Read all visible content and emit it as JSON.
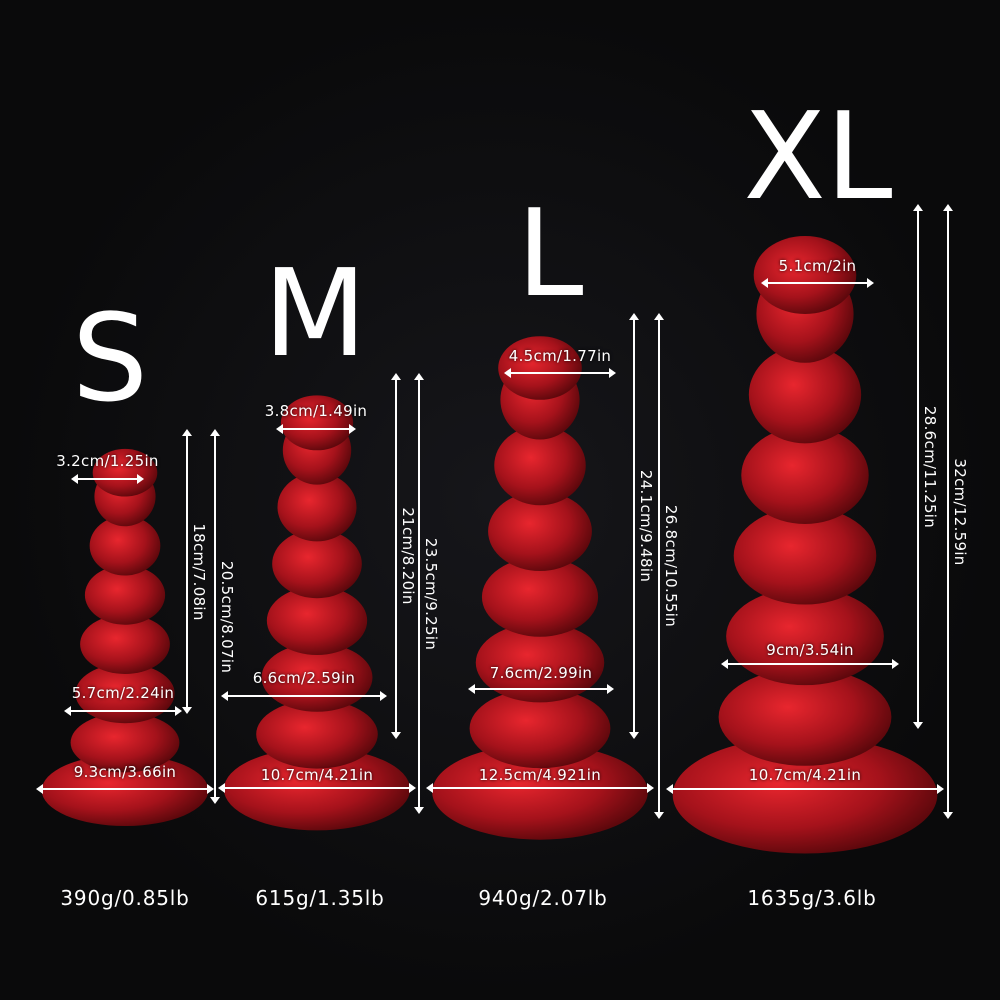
{
  "colors": {
    "background": "#0a0a0b",
    "product": "#b0121c",
    "highlight": "#e8262e",
    "text": "#ffffff"
  },
  "sizes": [
    {
      "label": "S",
      "top_diameter": "3.2cm/1.25in",
      "mid_diameter": "5.7cm/2.24in",
      "base_diameter": "9.3cm/3.66in",
      "insertable_length": "18cm/7.08in",
      "total_length": "20.5cm/8.07in",
      "weight": "390g/0.85lb"
    },
    {
      "label": "M",
      "top_diameter": "3.8cm/1.49in",
      "mid_diameter": "6.6cm/2.59in",
      "base_diameter": "10.7cm/4.21in",
      "insertable_length": "21cm/8.20in",
      "total_length": "23.5cm/9.25in",
      "weight": "615g/1.35lb"
    },
    {
      "label": "L",
      "top_diameter": "4.5cm/1.77in",
      "mid_diameter": "7.6cm/2.99in",
      "base_diameter": "12.5cm/4.921in",
      "insertable_length": "24.1cm/9.48in",
      "total_length": "26.8cm/10.55in",
      "weight": "940g/2.07lb"
    },
    {
      "label": "XL",
      "top_diameter": "5.1cm/2in",
      "mid_diameter": "9cm/3.54in",
      "base_diameter": "10.7cm/4.21in",
      "insertable_length": "28.6cm/11.25in",
      "total_length": "32cm/12.59in",
      "weight": "1635g/3.6lb"
    }
  ]
}
